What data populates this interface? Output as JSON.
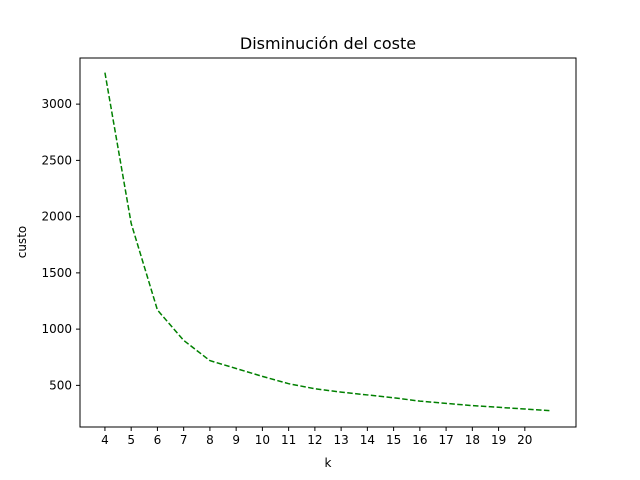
{
  "chart_data": {
    "type": "line",
    "title": "Disminución  del coste",
    "xlabel": "k",
    "ylabel": "custo",
    "xlim": [
      3.05,
      21.95
    ],
    "ylim": [
      130,
      3410
    ],
    "xticks": [
      4,
      5,
      6,
      7,
      8,
      9,
      10,
      11,
      12,
      13,
      14,
      15,
      16,
      17,
      18,
      19,
      20
    ],
    "yticks": [
      500,
      1000,
      1500,
      2000,
      2500,
      3000
    ],
    "grid": false,
    "series": [
      {
        "color": "#008000",
        "line_style": "dashed",
        "x": [
          4,
          5,
          6,
          7,
          8,
          9,
          10,
          11,
          12,
          13,
          14,
          15,
          16,
          17,
          18,
          19,
          20,
          21
        ],
        "y": [
          3280,
          1940,
          1170,
          900,
          720,
          650,
          580,
          515,
          470,
          440,
          415,
          390,
          360,
          340,
          320,
          305,
          290,
          275
        ]
      }
    ]
  }
}
